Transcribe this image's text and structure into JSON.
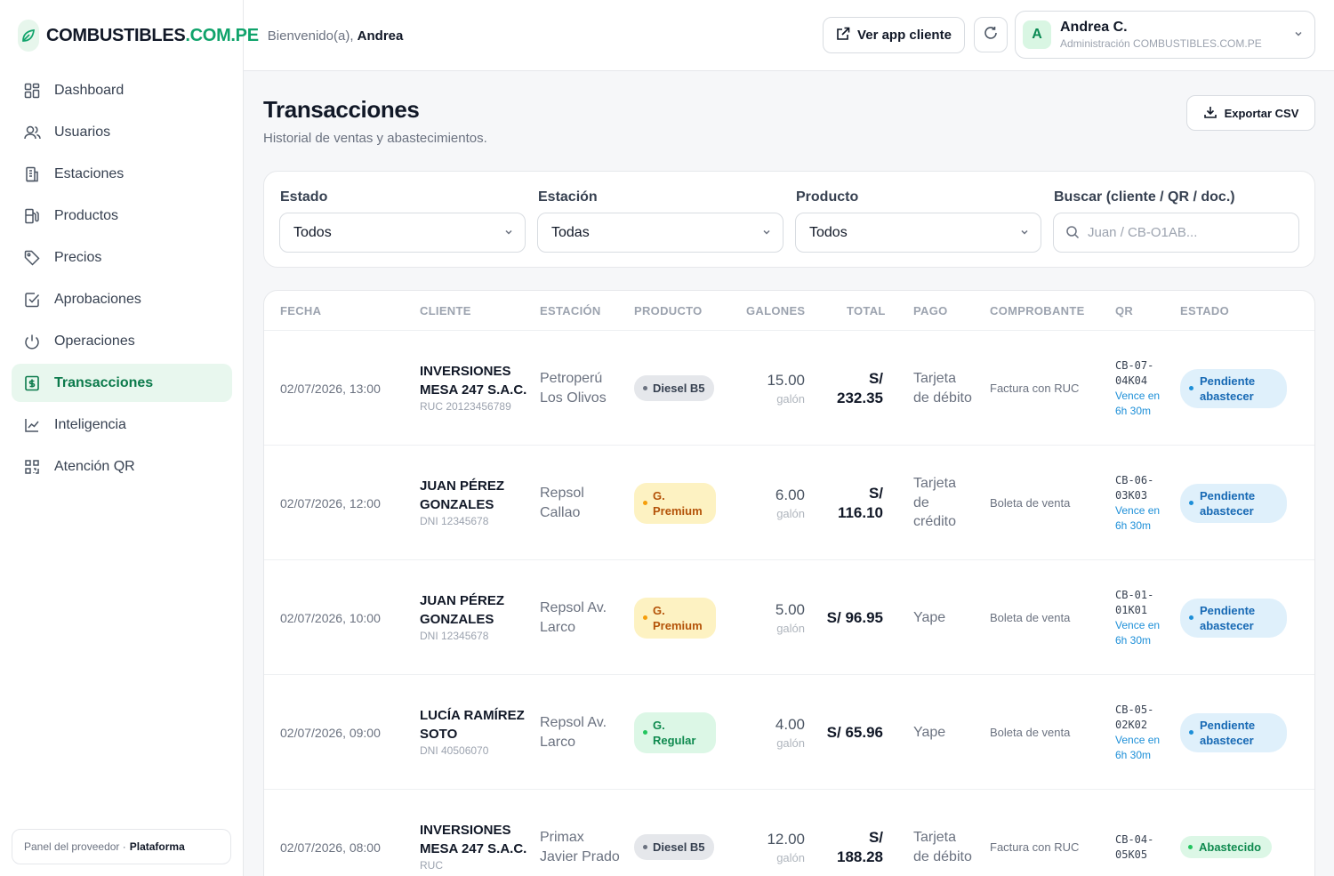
{
  "brand": {
    "name_main": "COMBUSTIBLES",
    "name_accent": ".COM.PE",
    "welcome_prefix": "Bienvenido(a),",
    "welcome_name": "Andrea"
  },
  "header": {
    "app_button": "Ver app cliente",
    "user_initial": "A",
    "user_name": "Andrea C.",
    "user_role": "Administración COMBUSTIBLES.COM.PE"
  },
  "sidebar": {
    "items": [
      {
        "label": "Dashboard",
        "icon": "dashboard-icon"
      },
      {
        "label": "Usuarios",
        "icon": "users-icon"
      },
      {
        "label": "Estaciones",
        "icon": "building-icon"
      },
      {
        "label": "Productos",
        "icon": "fuel-pump-icon"
      },
      {
        "label": "Precios",
        "icon": "tag-icon"
      },
      {
        "label": "Aprobaciones",
        "icon": "checkbox-icon"
      },
      {
        "label": "Operaciones",
        "icon": "power-icon"
      },
      {
        "label": "Transacciones",
        "icon": "receipt-icon",
        "active": true
      },
      {
        "label": "Inteligencia",
        "icon": "chart-line-icon"
      },
      {
        "label": "Atención QR",
        "icon": "qr-icon"
      }
    ],
    "provider_prefix": "Panel del proveedor ·",
    "provider_name": "Plataforma"
  },
  "page": {
    "title": "Transacciones",
    "subtitle": "Historial de ventas y abastecimientos.",
    "export_label": "Exportar CSV"
  },
  "filters": {
    "estado": {
      "label": "Estado",
      "value": "Todos"
    },
    "estacion": {
      "label": "Estación",
      "value": "Todas"
    },
    "producto": {
      "label": "Producto",
      "value": "Todos"
    },
    "buscar": {
      "label": "Buscar (cliente / QR / doc.)",
      "placeholder": "Juan / CB-O1AB..."
    }
  },
  "table": {
    "headers": [
      "FECHA",
      "CLIENTE",
      "ESTACIÓN",
      "PRODUCTO",
      "GALONES",
      "TOTAL",
      "PAGO",
      "COMPROBANTE",
      "QR",
      "ESTADO"
    ],
    "rows": [
      {
        "fecha": "02/07/2026, 13:00",
        "cliente": "INVERSIONES MESA 247 S.A.C.",
        "doc": "RUC 20123456789",
        "estacion": "Petroperú Los Olivos",
        "producto": "Diesel B5",
        "producto_kind": "diesel",
        "galones": "15.00",
        "unidad": "galón",
        "total": "S/ 232.35",
        "pago": "Tarjeta de débito",
        "comprobante": "Factura con RUC",
        "qr": "CB-07-04K04",
        "vence": "Vence en 6h 30m",
        "estado": "Pendiente abastecer",
        "estado_kind": "pend"
      },
      {
        "fecha": "02/07/2026, 12:00",
        "cliente": "JUAN PÉREZ GONZALES",
        "doc": "DNI 12345678",
        "estacion": "Repsol Callao",
        "producto": "G. Premium",
        "producto_kind": "premium",
        "galones": "6.00",
        "unidad": "galón",
        "total": "S/ 116.10",
        "pago": "Tarjeta de crédito",
        "comprobante": "Boleta de venta",
        "qr": "CB-06-03K03",
        "vence": "Vence en 6h 30m",
        "estado": "Pendiente abastecer",
        "estado_kind": "pend"
      },
      {
        "fecha": "02/07/2026, 10:00",
        "cliente": "JUAN PÉREZ GONZALES",
        "doc": "DNI 12345678",
        "estacion": "Repsol Av. Larco",
        "producto": "G. Premium",
        "producto_kind": "premium",
        "galones": "5.00",
        "unidad": "galón",
        "total": "S/ 96.95",
        "pago": "Yape",
        "comprobante": "Boleta de venta",
        "qr": "CB-01-01K01",
        "vence": "Vence en 6h 30m",
        "estado": "Pendiente abastecer",
        "estado_kind": "pend"
      },
      {
        "fecha": "02/07/2026, 09:00",
        "cliente": "LUCÍA RAMÍREZ SOTO",
        "doc": "DNI 40506070",
        "estacion": "Repsol Av. Larco",
        "producto": "G. Regular",
        "producto_kind": "regular",
        "galones": "4.00",
        "unidad": "galón",
        "total": "S/ 65.96",
        "pago": "Yape",
        "comprobante": "Boleta de venta",
        "qr": "CB-05-02K02",
        "vence": "Vence en 6h 30m",
        "estado": "Pendiente abastecer",
        "estado_kind": "pend"
      },
      {
        "fecha": "02/07/2026, 08:00",
        "cliente": "INVERSIONES MESA 247 S.A.C.",
        "doc": "RUC",
        "estacion": "Primax Javier Prado",
        "producto": "Diesel B5",
        "producto_kind": "diesel",
        "galones": "12.00",
        "unidad": "galón",
        "total": "S/ 188.28",
        "pago": "Tarjeta de débito",
        "comprobante": "Factura con RUC",
        "qr": "CB-04-05K05",
        "vence": "",
        "estado": "Abastecido",
        "estado_kind": "ok"
      }
    ]
  },
  "colors": {
    "accent": "#10a36b",
    "active_bg": "#e8f7ee",
    "pending": "#1d8fd8",
    "premium": "#b45309"
  }
}
